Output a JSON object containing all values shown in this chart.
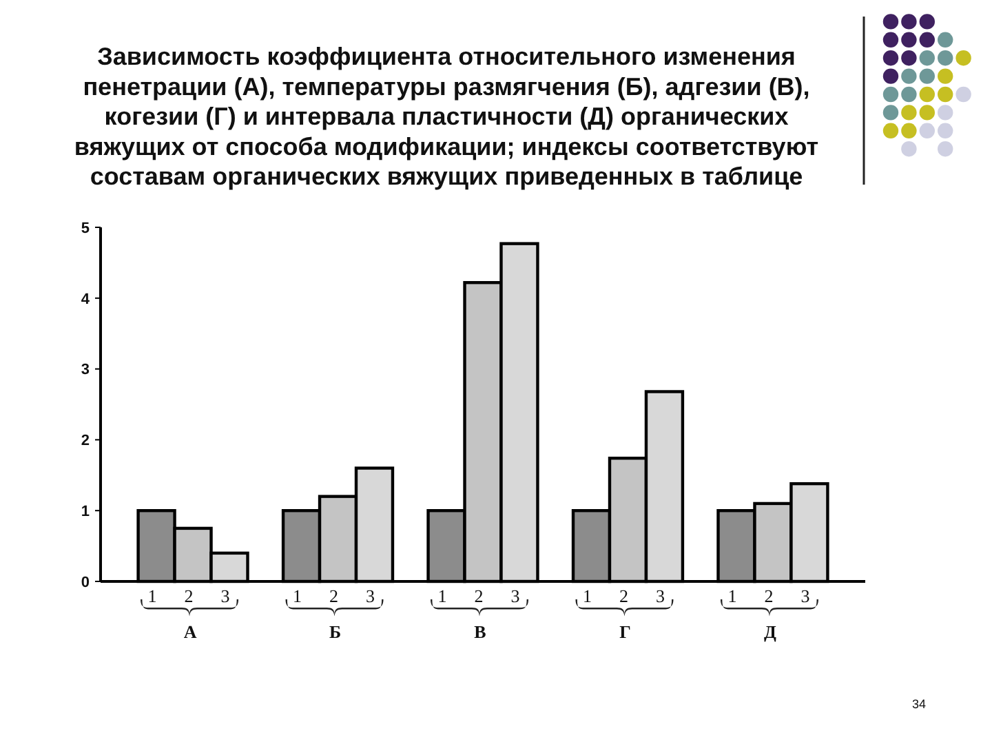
{
  "chart_data": {
    "type": "bar",
    "title": "Зависимость коэффициента относительного изменения\nпенетрации (А), температуры размягчения (Б), адгезии (В),\nкогезии (Г) и интервала пластичности (Д) органических\nвяжущих от способа модификации; индексы соответствуют\nсоставам органических вяжущих приведенных в таблице",
    "categories": [
      "А",
      "Б",
      "В",
      "Г",
      "Д"
    ],
    "series": [
      {
        "name": "1",
        "color": "#8c8c8c",
        "values": [
          1,
          1,
          1,
          1,
          1
        ]
      },
      {
        "name": "2",
        "color": "#c4c4c4",
        "values": [
          0.75,
          1.2,
          4.22,
          1.74,
          1.1
        ]
      },
      {
        "name": "3",
        "color": "#d8d8d8",
        "values": [
          0.4,
          1.6,
          4.77,
          2.68,
          1.38
        ]
      }
    ],
    "ylim": [
      0,
      5
    ],
    "yticks": [
      0,
      1,
      2,
      3,
      4,
      5
    ],
    "annotations": [
      "34"
    ]
  }
}
